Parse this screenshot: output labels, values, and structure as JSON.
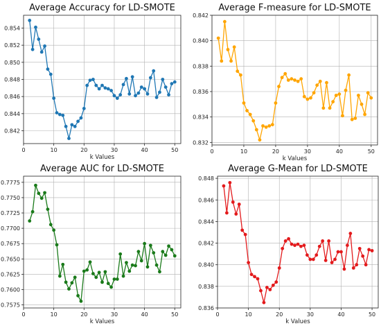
{
  "chart_data": [
    {
      "type": "line",
      "title": "Average Accuracy for LD-SMOTE",
      "xlabel": "k Values",
      "ylabel": "",
      "color": "#1f77b4",
      "grid": true,
      "xlim": [
        0,
        52
      ],
      "ylim": [
        0.8405,
        0.8555
      ],
      "xticks": [
        "0",
        "10",
        "20",
        "30",
        "40",
        "50"
      ],
      "xtick_values": [
        0,
        10,
        20,
        30,
        40,
        50
      ],
      "yticks": [
        "0.842",
        "0.844",
        "0.846",
        "0.848",
        "0.850",
        "0.852",
        "0.854"
      ],
      "ytick_values": [
        0.842,
        0.844,
        0.846,
        0.848,
        0.85,
        0.852,
        0.854
      ],
      "x": [
        2,
        3,
        4,
        5,
        6,
        7,
        8,
        9,
        10,
        11,
        12,
        13,
        14,
        15,
        16,
        17,
        18,
        19,
        20,
        21,
        22,
        23,
        24,
        25,
        26,
        27,
        28,
        29,
        30,
        31,
        32,
        33,
        34,
        35,
        36,
        37,
        38,
        39,
        40,
        41,
        42,
        43,
        44,
        45,
        46,
        47,
        48,
        49,
        50
      ],
      "values": [
        0.8549,
        0.8515,
        0.8541,
        0.8527,
        0.8512,
        0.8519,
        0.8492,
        0.8486,
        0.8458,
        0.8441,
        0.8439,
        0.8438,
        0.8425,
        0.8411,
        0.8427,
        0.8425,
        0.8431,
        0.8435,
        0.8446,
        0.8473,
        0.8479,
        0.848,
        0.8473,
        0.8469,
        0.8473,
        0.847,
        0.8469,
        0.8467,
        0.8461,
        0.8458,
        0.8462,
        0.8474,
        0.8481,
        0.8463,
        0.8483,
        0.8461,
        0.8464,
        0.8471,
        0.8469,
        0.8463,
        0.8482,
        0.849,
        0.8459,
        0.8465,
        0.848,
        0.8471,
        0.8462,
        0.8475,
        0.8477
      ]
    },
    {
      "type": "line",
      "title": "Average F-measure for LD-SMOTE",
      "xlabel": "k Values",
      "ylabel": "",
      "color": "#ffa500",
      "grid": true,
      "xlim": [
        0,
        52
      ],
      "ylim": [
        0.8318,
        0.842
      ],
      "xticks": [
        "0",
        "10",
        "20",
        "30",
        "40",
        "50"
      ],
      "xtick_values": [
        0,
        10,
        20,
        30,
        40,
        50
      ],
      "yticks": [
        "0.832",
        "0.834",
        "0.836",
        "0.838",
        "0.840",
        "0.842"
      ],
      "ytick_values": [
        0.832,
        0.834,
        0.836,
        0.838,
        0.84,
        0.842
      ],
      "x": [
        2,
        3,
        4,
        5,
        6,
        7,
        8,
        9,
        10,
        11,
        12,
        13,
        14,
        15,
        16,
        17,
        18,
        19,
        20,
        21,
        22,
        23,
        24,
        25,
        26,
        27,
        28,
        29,
        30,
        31,
        32,
        33,
        34,
        35,
        36,
        37,
        38,
        39,
        40,
        41,
        42,
        43,
        44,
        45,
        46,
        47,
        48,
        49,
        50
      ],
      "values": [
        0.8402,
        0.8384,
        0.8415,
        0.8393,
        0.8384,
        0.8395,
        0.8376,
        0.8373,
        0.8351,
        0.8345,
        0.8342,
        0.8337,
        0.833,
        0.8322,
        0.8333,
        0.8332,
        0.8333,
        0.8334,
        0.8351,
        0.8364,
        0.8371,
        0.8374,
        0.8369,
        0.837,
        0.8369,
        0.8368,
        0.837,
        0.8356,
        0.8354,
        0.8355,
        0.8359,
        0.8365,
        0.8368,
        0.8347,
        0.8367,
        0.8347,
        0.8352,
        0.8357,
        0.8358,
        0.8341,
        0.8361,
        0.8373,
        0.8338,
        0.8339,
        0.8357,
        0.835,
        0.8342,
        0.8359,
        0.8355
      ]
    },
    {
      "type": "line",
      "title": "Average AUC for LD-SMOTE",
      "xlabel": "k Values",
      "ylabel": "",
      "color": "#1a7a1a",
      "grid": true,
      "xlim": [
        0,
        52
      ],
      "ylim": [
        0.757,
        0.7785
      ],
      "xticks": [
        "0",
        "10",
        "20",
        "30",
        "40",
        "50"
      ],
      "xtick_values": [
        0,
        10,
        20,
        30,
        40,
        50
      ],
      "yticks": [
        "0.7575",
        "0.7600",
        "0.7625",
        "0.7650",
        "0.7675",
        "0.7700",
        "0.7725",
        "0.7750",
        "0.7775"
      ],
      "ytick_values": [
        0.7575,
        0.76,
        0.7625,
        0.765,
        0.7675,
        0.77,
        0.7725,
        0.775,
        0.7775
      ],
      "x": [
        2,
        3,
        4,
        5,
        6,
        7,
        8,
        9,
        10,
        11,
        12,
        13,
        14,
        15,
        16,
        17,
        18,
        19,
        20,
        21,
        22,
        23,
        24,
        25,
        26,
        27,
        28,
        29,
        30,
        31,
        32,
        33,
        34,
        35,
        36,
        37,
        38,
        39,
        40,
        41,
        42,
        43,
        44,
        45,
        46,
        47,
        48,
        49,
        50
      ],
      "values": [
        0.7712,
        0.7727,
        0.777,
        0.7757,
        0.7749,
        0.7758,
        0.7731,
        0.7706,
        0.7697,
        0.7673,
        0.7622,
        0.7641,
        0.7612,
        0.7601,
        0.7611,
        0.762,
        0.759,
        0.7581,
        0.763,
        0.7632,
        0.7645,
        0.7626,
        0.762,
        0.7628,
        0.7612,
        0.7629,
        0.761,
        0.7604,
        0.7617,
        0.7617,
        0.7658,
        0.7622,
        0.7644,
        0.763,
        0.764,
        0.7639,
        0.7662,
        0.7647,
        0.7675,
        0.7637,
        0.7672,
        0.766,
        0.764,
        0.7629,
        0.7662,
        0.7656,
        0.7671,
        0.7665,
        0.7655
      ]
    },
    {
      "type": "line",
      "title": "Average G-Mean for LD-SMOTE",
      "xlabel": "k Values",
      "ylabel": "",
      "color": "#e31a1c",
      "grid": true,
      "xlim": [
        0,
        52
      ],
      "ylim": [
        0.836,
        0.8482
      ],
      "xticks": [
        "0",
        "10",
        "20",
        "30",
        "40",
        "50"
      ],
      "xtick_values": [
        0,
        10,
        20,
        30,
        40,
        50
      ],
      "yticks": [
        "0.836",
        "0.838",
        "0.840",
        "0.842",
        "0.844",
        "0.846",
        "0.848"
      ],
      "ytick_values": [
        0.836,
        0.838,
        0.84,
        0.842,
        0.844,
        0.846,
        0.848
      ],
      "x": [
        2,
        3,
        4,
        5,
        6,
        7,
        8,
        9,
        10,
        11,
        12,
        13,
        14,
        15,
        16,
        17,
        18,
        19,
        20,
        21,
        22,
        23,
        24,
        25,
        26,
        27,
        28,
        29,
        30,
        31,
        32,
        33,
        34,
        35,
        36,
        37,
        38,
        39,
        40,
        41,
        42,
        43,
        44,
        45,
        46,
        47,
        48,
        49,
        50
      ],
      "values": [
        0.8473,
        0.8448,
        0.8476,
        0.8458,
        0.8447,
        0.8456,
        0.8432,
        0.8428,
        0.8402,
        0.8391,
        0.8389,
        0.8387,
        0.8376,
        0.8365,
        0.8379,
        0.8377,
        0.8381,
        0.8384,
        0.8397,
        0.8415,
        0.8422,
        0.8424,
        0.8419,
        0.8418,
        0.8419,
        0.8417,
        0.8418,
        0.8409,
        0.8405,
        0.8405,
        0.8409,
        0.8417,
        0.8422,
        0.8404,
        0.8422,
        0.8402,
        0.8405,
        0.8412,
        0.8412,
        0.8396,
        0.8418,
        0.8429,
        0.8397,
        0.84,
        0.8415,
        0.8408,
        0.84,
        0.8414,
        0.8413
      ]
    }
  ]
}
